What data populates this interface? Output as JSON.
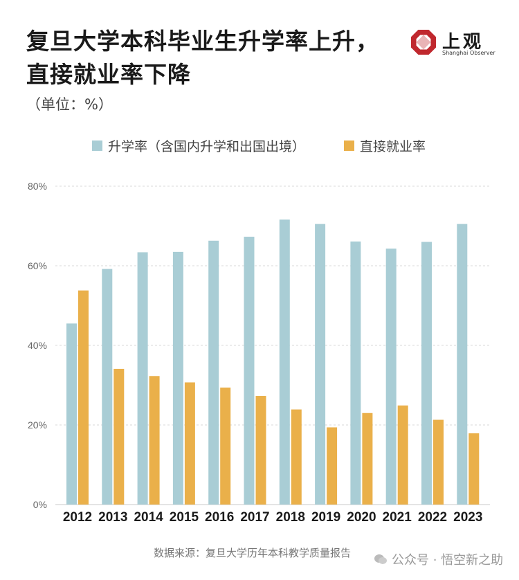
{
  "header": {
    "title": "复旦大学本科毕业生升学率上升，直接就业率下降",
    "unit": "（单位：%）"
  },
  "logo": {
    "name": "上观",
    "subtitle": "Shanghai Observer",
    "color": "#c0282e"
  },
  "legend": [
    {
      "label": "升学率（含国内升学和出国出境）",
      "color": "#a9cdd5"
    },
    {
      "label": "直接就业率",
      "color": "#eab04a"
    }
  ],
  "footer": {
    "source": "数据来源：复旦大学历年本科教学质量报告",
    "watermark": "公众号 · 悟空新之助"
  },
  "chart_data": {
    "type": "bar",
    "categories": [
      "2012",
      "2013",
      "2014",
      "2015",
      "2016",
      "2017",
      "2018",
      "2019",
      "2020",
      "2021",
      "2022",
      "2023"
    ],
    "series": [
      {
        "name": "升学率（含国内升学和出国出境）",
        "color": "#a9cdd5",
        "values": [
          45.5,
          59.2,
          63.4,
          63.5,
          66.3,
          67.3,
          71.6,
          70.5,
          66.1,
          64.3,
          66.0,
          70.5
        ]
      },
      {
        "name": "直接就业率",
        "color": "#eab04a",
        "values": [
          53.8,
          34.1,
          32.3,
          30.7,
          29.4,
          27.3,
          23.9,
          19.4,
          23.0,
          24.9,
          21.3,
          17.9
        ]
      }
    ],
    "yticks": [
      "0%",
      "20%",
      "40%",
      "60%",
      "80%"
    ],
    "ylim": [
      0,
      80
    ],
    "grid": true
  }
}
